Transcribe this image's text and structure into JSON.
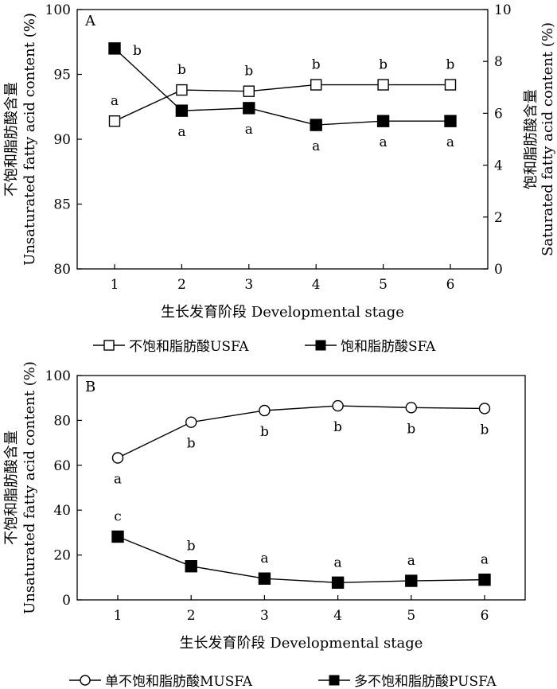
{
  "chart_data": [
    {
      "panel": "A",
      "type": "line",
      "categories": [
        "1",
        "2",
        "3",
        "4",
        "5",
        "6"
      ],
      "xlabel": "生长发育阶段 Developmental stage",
      "ylabel": "不饱和脂肪酸含量 Unsaturated fatty acid content (%)",
      "ylabel_lines": [
        "不饱和脂肪酸含量",
        "Unsaturated fatty acid content (%)"
      ],
      "ylim": [
        80,
        100
      ],
      "yticks": [
        80,
        85,
        90,
        95,
        100
      ],
      "y2label": "饱和脂肪酸含量 Saturated fatty acid content (%)",
      "y2label_lines": [
        "饱和脂肪酸含量",
        "Saturated fatty acid content (%)"
      ],
      "y2lim": [
        0,
        10
      ],
      "y2ticks": [
        0,
        2,
        4,
        6,
        8,
        10
      ],
      "series": [
        {
          "name": "不饱和脂肪酸USFA",
          "axis": "left",
          "marker": "open-square",
          "values": [
            91.4,
            93.8,
            93.7,
            94.2,
            94.2,
            94.2
          ],
          "labels": [
            "a",
            "b",
            "b",
            "b",
            "b",
            "b"
          ],
          "label_pos": [
            "above",
            "above",
            "above",
            "above",
            "above",
            "above"
          ]
        },
        {
          "name": "饱和脂肪酸SFA",
          "axis": "right",
          "marker": "filled-square",
          "values": [
            8.5,
            6.1,
            6.2,
            5.55,
            5.7,
            5.7
          ],
          "labels": [
            "b",
            "a",
            "a",
            "a",
            "a",
            "a"
          ],
          "label_pos": [
            "right",
            "below",
            "below",
            "below",
            "below",
            "below"
          ]
        }
      ]
    },
    {
      "panel": "B",
      "type": "line",
      "categories": [
        "1",
        "2",
        "3",
        "4",
        "5",
        "6"
      ],
      "xlabel": "生长发育阶段 Developmental stage",
      "ylabel": "不饱和脂肪酸含量 Unsaturated fatty acid content (%)",
      "ylabel_lines": [
        "不饱和脂肪酸含量",
        "Unsaturated fatty acid content (%)"
      ],
      "ylim": [
        0,
        100
      ],
      "yticks": [
        0,
        20,
        40,
        60,
        80,
        100
      ],
      "series": [
        {
          "name": "单不饱和脂肪酸MUSFA",
          "marker": "open-circle",
          "values": [
            63.3,
            79.2,
            84.4,
            86.5,
            85.7,
            85.3
          ],
          "labels": [
            "a",
            "b",
            "b",
            "b",
            "b",
            "b"
          ],
          "label_pos": [
            "below",
            "below",
            "below",
            "below",
            "below",
            "below"
          ]
        },
        {
          "name": "多不饱和脂肪酸PUSFA",
          "marker": "filled-square",
          "values": [
            28.2,
            15.0,
            9.5,
            7.7,
            8.5,
            9.0
          ],
          "labels": [
            "c",
            "b",
            "a",
            "a",
            "a",
            "a"
          ],
          "label_pos": [
            "above",
            "above",
            "above",
            "above",
            "above",
            "above"
          ]
        }
      ]
    }
  ]
}
